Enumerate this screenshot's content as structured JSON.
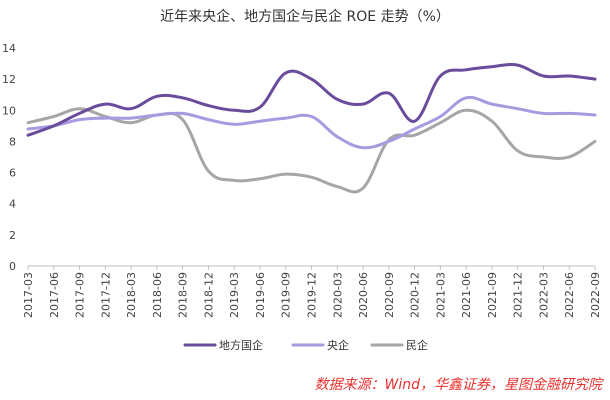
{
  "chart_data": {
    "type": "line",
    "title": "近年来央企、地方国企与民企 ROE 走势（%）",
    "source": "数据来源：Wind，华鑫证券，星图金融研究院",
    "xlabel": "",
    "ylabel": "",
    "ylim": [
      0,
      14
    ],
    "yticks": [
      0,
      2,
      4,
      6,
      8,
      10,
      12,
      14
    ],
    "grid": false,
    "legend": "bottom",
    "categories": [
      "2017-03",
      "2017-06",
      "2017-09",
      "2017-12",
      "2018-03",
      "2018-06",
      "2018-09",
      "2018-12",
      "2019-03",
      "2019-06",
      "2019-09",
      "2019-12",
      "2020-03",
      "2020-06",
      "2020-09",
      "2020-12",
      "2021-03",
      "2021-06",
      "2021-09",
      "2021-12",
      "2022-03",
      "2022-06",
      "2022-09"
    ],
    "series": [
      {
        "name": "地方国企",
        "color": "#6a4c9c",
        "values": [
          8.4,
          9.0,
          9.8,
          10.4,
          10.1,
          10.9,
          10.8,
          10.3,
          10.0,
          10.2,
          12.4,
          12.0,
          10.7,
          10.4,
          11.1,
          9.3,
          12.2,
          12.6,
          12.8,
          12.9,
          12.2,
          12.2,
          12.0
        ]
      },
      {
        "name": "央企",
        "color": "#a79ae0",
        "values": [
          8.8,
          9.0,
          9.4,
          9.5,
          9.5,
          9.7,
          9.8,
          9.4,
          9.1,
          9.3,
          9.5,
          9.6,
          8.3,
          7.6,
          8.0,
          8.8,
          9.6,
          10.8,
          10.4,
          10.1,
          9.8,
          9.8,
          9.7
        ]
      },
      {
        "name": "民企",
        "color": "#a6a6a6",
        "values": [
          9.2,
          9.6,
          10.1,
          9.6,
          9.2,
          9.7,
          9.4,
          6.1,
          5.5,
          5.6,
          5.9,
          5.7,
          5.1,
          5.0,
          8.1,
          8.4,
          9.2,
          10.0,
          9.3,
          7.4,
          7.0,
          7.0,
          8.0
        ]
      }
    ]
  }
}
